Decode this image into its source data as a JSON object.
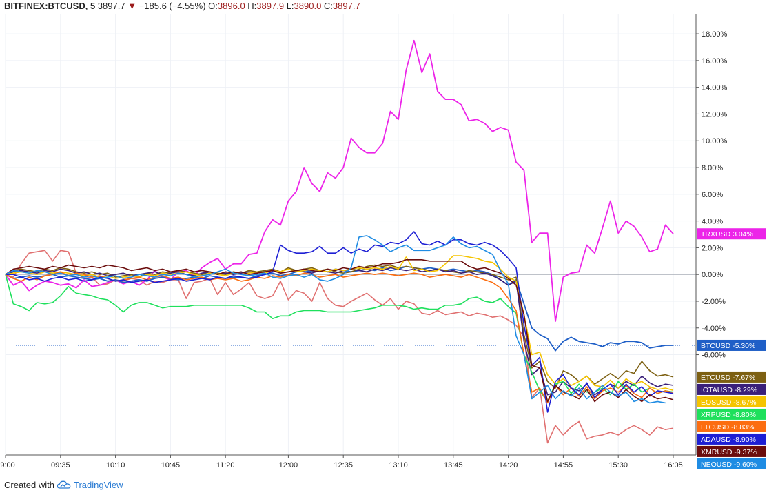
{
  "header": {
    "symbol": "BITFINEX:BTCUSD, 5",
    "last": "3897.7",
    "change_arrow": "▼",
    "change": "−185.6 (−4.55%)",
    "o_label": "O:",
    "o_val": "3896.0",
    "h_label": "H:",
    "h_val": "3897.9",
    "l_label": "L:",
    "l_val": "3890.0",
    "c_label": "C:",
    "c_val": "3897.7"
  },
  "footer": {
    "created_with": "Created with",
    "brand": "TradingView",
    "logo_icon": "tradingview-cloud-icon"
  },
  "chart_data": {
    "type": "line",
    "y_unit": "%",
    "y_ticks": [
      "18.00%",
      "16.00%",
      "14.00%",
      "12.00%",
      "10.00%",
      "8.00%",
      "6.00%",
      "4.00%",
      "2.00%",
      "0.00%",
      "-2.00%",
      "-4.00%",
      "-6.00%"
    ],
    "ylim": [
      -13.5,
      19.5
    ],
    "x_ticks": [
      "09:00",
      "09:35",
      "10:10",
      "10:45",
      "11:20",
      "12:00",
      "12:35",
      "13:10",
      "13:45",
      "14:20",
      "14:55",
      "15:30",
      "16:05"
    ],
    "grid": true,
    "series": [
      {
        "name": "TRXUSD",
        "label": "3.04%",
        "color": "#ec24e8",
        "values": [
          0,
          -0.8,
          -0.5,
          -1.2,
          -0.8,
          -0.5,
          -0.6,
          -0.8,
          -0.7,
          -1,
          -0.4,
          -0.9,
          -0.8,
          -0.6,
          -0.4,
          -0.7,
          -0.5,
          -0.8,
          -0.4,
          0.3,
          -0.2,
          -0.4,
          0.2,
          0.3,
          -0.1,
          0.5,
          0.9,
          1.2,
          0.4,
          0.8,
          0.8,
          1.5,
          1.6,
          3.2,
          4.1,
          3.7,
          5.5,
          6.2,
          8,
          6.8,
          6.2,
          7.6,
          7.2,
          8,
          10.2,
          9.5,
          9.1,
          9.1,
          9.8,
          12.2,
          11.6,
          15.3,
          17.5,
          15.1,
          16.5,
          13.7,
          13.1,
          13.1,
          12.7,
          11.5,
          11.6,
          11.3,
          10.7,
          11,
          10.8,
          8.4,
          7.8,
          2.4,
          3.1,
          3.1,
          -3.5,
          -0.2,
          0.1,
          0.2,
          2.2,
          1.6,
          3.5,
          5.5,
          3.1,
          4,
          3.6,
          2.8,
          1.7,
          1.9,
          3.7,
          3.04
        ]
      },
      {
        "name": "BTCUSD",
        "label": "-5.30%",
        "color": "#1f5fc7",
        "values": [
          0,
          -0.3,
          -0.2,
          -0.1,
          -0.2,
          -0.1,
          0,
          -0.2,
          -0.1,
          -0.2,
          -0.3,
          -0.4,
          -0.3,
          -0.5,
          -0.4,
          -0.6,
          -0.5,
          -0.4,
          -0.5,
          -0.3,
          -0.2,
          -0.3,
          -0.4,
          -0.3,
          -0.2,
          -0.3,
          -0.1,
          -0.2,
          -0.3,
          -0.2,
          -0.2,
          -0.3,
          -0.1,
          0,
          0.1,
          -0.1,
          0,
          0.2,
          0.3,
          0.2,
          0.3,
          0.2,
          0.4,
          0.3,
          0.2,
          0.3,
          0.4,
          0.3,
          0.5,
          0.3,
          0.4,
          0.6,
          0.5,
          0.4,
          0.5,
          0.4,
          0.3,
          0.4,
          0.3,
          0.2,
          0.3,
          0.2,
          0,
          -0.4,
          -0.8,
          -0.4,
          -2.2,
          -4,
          -4.5,
          -4.8,
          -5.7,
          -5,
          -4.7,
          -5,
          -5.1,
          -5.2,
          -5.4,
          -5.1,
          -5.2,
          -5,
          -5,
          -5.1,
          -5.5,
          -5.4,
          -5.3,
          -5.3
        ]
      },
      {
        "name": "ETCUSD",
        "label": "-7.67%",
        "color": "#7d6012",
        "values": [
          0,
          0.3,
          0.4,
          0.3,
          0.2,
          0.4,
          0.3,
          0.5,
          0.4,
          0.2,
          0.1,
          0.2,
          0,
          0.1,
          -0.2,
          -0.1,
          0,
          -0.2,
          0.1,
          0,
          0.2,
          0.1,
          0.3,
          0.2,
          0.1,
          0,
          0.2,
          0.1,
          0,
          0.2,
          0.1,
          0.3,
          0.2,
          0.3,
          0.4,
          0.2,
          0.5,
          0.3,
          0.4,
          0.5,
          0.3,
          0.4,
          0.2,
          0.1,
          0.2,
          0.4,
          0.6,
          0.7,
          0.6,
          0.7,
          0.5,
          0.6,
          0.5,
          0.4,
          0.3,
          0.4,
          0.3,
          0.2,
          0.1,
          0.3,
          0.2,
          0.1,
          0,
          -0.2,
          -0.4,
          -0.2,
          -4.5,
          -7,
          -6.5,
          -8,
          -8.5,
          -7.2,
          -7.5,
          -8,
          -7.6,
          -8.2,
          -7.8,
          -7.4,
          -7.8,
          -7.2,
          -7.4,
          -6.5,
          -7.2,
          -7.6,
          -7.5,
          -7.67
        ]
      },
      {
        "name": "IOTAUSD",
        "label": "-8.29%",
        "color": "#3a207a",
        "values": [
          0,
          0.2,
          0.3,
          0.2,
          0.1,
          0.3,
          0.2,
          0.4,
          0.3,
          0.1,
          0.2,
          0,
          0.1,
          -0.1,
          0,
          0.1,
          -0.1,
          0,
          0.1,
          0.2,
          0,
          0.1,
          0.2,
          0,
          -0.1,
          0.1,
          0.2,
          0,
          0.1,
          0,
          0.1,
          0.2,
          0.1,
          0.2,
          0.3,
          0.1,
          0.2,
          0.3,
          0.2,
          0.1,
          0.3,
          0.2,
          0.1,
          0.3,
          0.4,
          0.3,
          0.2,
          0.4,
          0.3,
          0.5,
          0.4,
          0.3,
          0.4,
          0.2,
          0.3,
          0.4,
          0.2,
          0.3,
          0.1,
          0.2,
          0,
          0.1,
          -0.1,
          -0.4,
          -0.8,
          -0.5,
          -5,
          -7.5,
          -7,
          -9,
          -8.8,
          -8,
          -8.5,
          -8.7,
          -8.2,
          -9,
          -8.6,
          -8.2,
          -8.5,
          -8,
          -8.3,
          -7.6,
          -8.1,
          -8.4,
          -8.2,
          -8.29
        ]
      },
      {
        "name": "EOSUSD",
        "label": "-8.67%",
        "color": "#f5c400",
        "values": [
          0,
          0.1,
          0.2,
          0.1,
          0,
          0.2,
          0.1,
          0.2,
          0.1,
          0,
          -0.1,
          0,
          -0.2,
          -0.1,
          -0.3,
          -0.2,
          -0.1,
          -0.2,
          0,
          -0.1,
          0.1,
          0,
          0.1,
          0.2,
          0,
          -0.1,
          0.1,
          0,
          -0.1,
          0.1,
          0,
          0.1,
          0.2,
          0.1,
          0.3,
          0.2,
          0.4,
          0.2,
          0.3,
          0.4,
          0.3,
          0.2,
          0.4,
          0.3,
          0.4,
          0.5,
          0.4,
          0.5,
          0.4,
          0.6,
          0.4,
          1.3,
          0.3,
          0.4,
          0.2,
          0.3,
          0.8,
          1.4,
          1.4,
          1.3,
          1.2,
          1,
          0.9,
          0.4,
          -0.2,
          -0.5,
          -3,
          -6,
          -5.8,
          -7.5,
          -8.2,
          -7.8,
          -8.3,
          -8,
          -7.6,
          -8.3,
          -8.4,
          -7.9,
          -8.5,
          -7.8,
          -8.2,
          -8,
          -8.4,
          -8.6,
          -8.5,
          -8.67
        ]
      },
      {
        "name": "XRPUSD",
        "label": "-8.80%",
        "color": "#1ee05c",
        "values": [
          0,
          -2.2,
          -2.4,
          -2.7,
          -2.1,
          -2.2,
          -2.1,
          -1.6,
          -0.9,
          -1.4,
          -1.5,
          -1.6,
          -1.8,
          -1.9,
          -2.3,
          -2.8,
          -2.3,
          -2.1,
          -2.1,
          -2.3,
          -2.5,
          -2.4,
          -2.4,
          -2.4,
          -2.3,
          -2.3,
          -2.3,
          -2.3,
          -2.3,
          -2.3,
          -2.3,
          -2.5,
          -2.8,
          -2.8,
          -3.3,
          -3.1,
          -3.1,
          -2.8,
          -2.7,
          -2.7,
          -2.7,
          -2.8,
          -2.8,
          -2.8,
          -2.8,
          -2.7,
          -2.6,
          -2.5,
          -2.3,
          -2.3,
          -2.3,
          -2.4,
          -2.6,
          -2.5,
          -2.6,
          -2.6,
          -2.3,
          -2.3,
          -2.2,
          -1.8,
          -1.7,
          -2,
          -2.1,
          -1.8,
          -2.4,
          -2.9,
          -6,
          -7.3,
          -8.7,
          -9.5,
          -8.2,
          -8,
          -8.9,
          -8.2,
          -8.8,
          -8.8,
          -8.5,
          -9,
          -8,
          -8.6,
          -8.2,
          -8.8,
          -8.5,
          -8.9,
          -8.7,
          -8.8
        ]
      },
      {
        "name": "LTCUSD",
        "label": "-8.83%",
        "color": "#fc6d10",
        "values": [
          0,
          -0.3,
          -0.5,
          -0.2,
          -0.4,
          -0.1,
          0,
          0.2,
          -0.1,
          0.1,
          0,
          -0.2,
          -0.1,
          -0.3,
          -0.5,
          -0.4,
          -0.3,
          -0.2,
          -0.4,
          -0.2,
          -0.1,
          -0.3,
          -0.2,
          -0.4,
          -0.3,
          -0.2,
          -0.4,
          -0.3,
          -0.4,
          -0.3,
          -0.5,
          -0.4,
          -0.2,
          -0.3,
          -0.1,
          -0.2,
          0,
          -0.1,
          0.1,
          0,
          -0.2,
          -0.1,
          0,
          -0.2,
          -0.1,
          0,
          0.1,
          0,
          0.1,
          0,
          -0.1,
          0,
          0.1,
          0,
          -0.2,
          -0.1,
          0,
          -0.1,
          -0.2,
          0,
          -0.2,
          -0.4,
          -0.6,
          -1,
          -1.8,
          -2.7,
          -6,
          -8.8,
          -8.5,
          -9.6,
          -8.3,
          -9,
          -8.5,
          -9.1,
          -8.4,
          -9.3,
          -8.7,
          -8.5,
          -8.8,
          -8.3,
          -8.9,
          -9.2,
          -8.5,
          -8.9,
          -8.7,
          -8.83
        ]
      },
      {
        "name": "ADAUSD",
        "label": "-8.90%",
        "color": "#1d1fd4",
        "values": [
          0,
          0,
          -0.2,
          -0.4,
          -0.3,
          -0.5,
          -0.3,
          -0.2,
          -0.4,
          -0.3,
          -0.5,
          -0.4,
          -0.2,
          -0.3,
          -0.5,
          -0.4,
          -0.6,
          -0.5,
          -0.4,
          -0.6,
          -0.5,
          -0.4,
          -0.3,
          -0.5,
          -0.4,
          -0.3,
          -0.4,
          -0.2,
          -0.3,
          -0.1,
          -0.2,
          -0.3,
          -0.2,
          0,
          0.2,
          2.2,
          1.8,
          1.6,
          1.6,
          1.7,
          2.1,
          1.6,
          1.6,
          2,
          1.6,
          1.9,
          1.7,
          2.2,
          2.1,
          2.4,
          2.3,
          2.6,
          3.2,
          2.3,
          2.2,
          2.5,
          2.2,
          2.6,
          2.6,
          2.3,
          2.2,
          2.4,
          2.2,
          1.8,
          1.2,
          0.5,
          -3.8,
          -6.8,
          -6.2,
          -10.3,
          -8,
          -7.5,
          -8.5,
          -9,
          -8.1,
          -9.2,
          -8.6,
          -8.2,
          -9,
          -8.2,
          -8.8,
          -8.4,
          -9.1,
          -8.7,
          -8.8,
          -8.9
        ]
      },
      {
        "name": "XMRUSD",
        "label": "-9.37%",
        "color": "#6b0d0d",
        "values": [
          0,
          0.4,
          0.5,
          0.6,
          0.5,
          0.4,
          0.6,
          0.5,
          0.7,
          0.6,
          0.5,
          0.6,
          0.5,
          0.7,
          0.6,
          0.5,
          0.3,
          0.4,
          0.5,
          0.3,
          0.4,
          0.2,
          0.3,
          0.4,
          0.2,
          0.3,
          0.2,
          0,
          0.2,
          0.1,
          0.2,
          0,
          0.1,
          0.2,
          0.3,
          0.1,
          0.2,
          0.3,
          0.4,
          0.3,
          0.2,
          0.4,
          0.3,
          0.5,
          0.4,
          0.6,
          0.5,
          0.6,
          0.8,
          0.8,
          0.9,
          1.1,
          1.1,
          1.1,
          1,
          1,
          1,
          1,
          1,
          0.6,
          0.4,
          0.5,
          0.3,
          0.1,
          -0.3,
          -0.8,
          -3,
          -6.8,
          -7,
          -9.5,
          -8.3,
          -8.8,
          -9,
          -9.3,
          -8.6,
          -9.5,
          -9,
          -8.8,
          -9.2,
          -8.6,
          -9.1,
          -9.5,
          -9,
          -9.3,
          -9.2,
          -9.37
        ]
      },
      {
        "name": "NEOUSD",
        "label": "-9.60%",
        "color": "#1f8ce3",
        "values": [
          0,
          0.3,
          0.2,
          0.1,
          0.3,
          0.2,
          0,
          0.1,
          -0.1,
          0,
          -0.2,
          -0.1,
          -0.3,
          -0.2,
          -0.1,
          -0.3,
          -0.2,
          0,
          -0.1,
          -0.2,
          0,
          -0.1,
          0.1,
          0,
          -0.2,
          -0.1,
          0,
          0.2,
          0.4,
          0.1,
          0,
          -0.1,
          0,
          0.1,
          -0.2,
          -0.3,
          -0.1,
          0,
          -0.2,
          0,
          -0.4,
          -0.5,
          -0.3,
          0,
          0.5,
          2.8,
          2.9,
          2.6,
          2.2,
          1.7,
          2,
          2.2,
          1.8,
          1.8,
          1.8,
          2,
          2.2,
          2.8,
          2.3,
          2,
          2.1,
          1.8,
          1.5,
          0.3,
          -0.7,
          -4.6,
          -6,
          -9.3,
          -8.8,
          -8.3,
          -9.3,
          -8.7,
          -9.1,
          -8.5,
          -9.3,
          -8.8,
          -8.3,
          -8.8,
          -9.1,
          -8.8,
          -9.5,
          -9.3,
          -9.6,
          -9.5,
          -9.6
        ]
      },
      {
        "name": "unlabeled",
        "label": "",
        "color": "#e07070",
        "values": [
          0,
          -0.2,
          0.8,
          1.6,
          1.7,
          1.8,
          1,
          1.8,
          1.7,
          0.1,
          -0.3,
          -0.2,
          -0.8,
          -0.7,
          -0.4,
          -0.5,
          -0.3,
          -0.4,
          -0.8,
          -0.5,
          -0.6,
          -0.4,
          -0.4,
          -1.8,
          -0.6,
          -0.5,
          -0.3,
          -1.5,
          -0.6,
          -1.5,
          -1.1,
          -0.6,
          -1.6,
          -1.8,
          -1.6,
          -0.5,
          -1.9,
          -1.2,
          -1.4,
          -2,
          -0.6,
          -1.8,
          -2.3,
          -2.4,
          -2,
          -1.7,
          -1.4,
          -1.9,
          -2.3,
          -1.8,
          -2.6,
          -2,
          -2.2,
          -2.9,
          -3,
          -2.7,
          -3,
          -2.9,
          -2.8,
          -3.1,
          -2.9,
          -3,
          -3.2,
          -3.1,
          -3.4,
          -3.8,
          -4.7,
          -9.2,
          -8.5,
          -12.6,
          -11.3,
          -12,
          -11.4,
          -11,
          -12.3,
          -12.1,
          -12,
          -11.8,
          -12,
          -11.6,
          -11.3,
          -11.6,
          -12,
          -11.4,
          -11.6,
          -11.5
        ]
      }
    ],
    "tags": [
      {
        "series": "TRXUSD",
        "value": 3.04,
        "text": "TRXUSD  3.04%",
        "bg": "#ec24e8"
      },
      {
        "series": "BTCUSD",
        "value": -5.3,
        "text": "BTCUSD  -5.30%",
        "bg": "#1f5fc7"
      },
      {
        "series": "ETCUSD",
        "value": -7.67,
        "text": "ETCUSD  -7.67%",
        "bg": "#7d6012"
      },
      {
        "series": "IOTAUSD",
        "value": -8.29,
        "text": "IOTAUSD  -8.29%",
        "bg": "#3a207a"
      },
      {
        "series": "EOSUSD",
        "value": -8.67,
        "text": "EOSUSD  -8.67%",
        "bg": "#f5c400"
      },
      {
        "series": "XRPUSD",
        "value": -8.8,
        "text": "XRPUSD  -8.80%",
        "bg": "#1ee05c"
      },
      {
        "series": "LTCUSD",
        "value": -8.83,
        "text": "LTCUSD  -8.83%",
        "bg": "#fc6d10"
      },
      {
        "series": "ADAUSD",
        "value": -8.9,
        "text": "ADAUSD  -8.90%",
        "bg": "#1d1fd4"
      },
      {
        "series": "XMRUSD",
        "value": -9.37,
        "text": "XMRUSD  -9.37%",
        "bg": "#6b0d0d"
      },
      {
        "series": "NEOUSD",
        "value": -9.6,
        "text": "NEOUSD  -9.60%",
        "bg": "#1f8ce3"
      }
    ]
  }
}
